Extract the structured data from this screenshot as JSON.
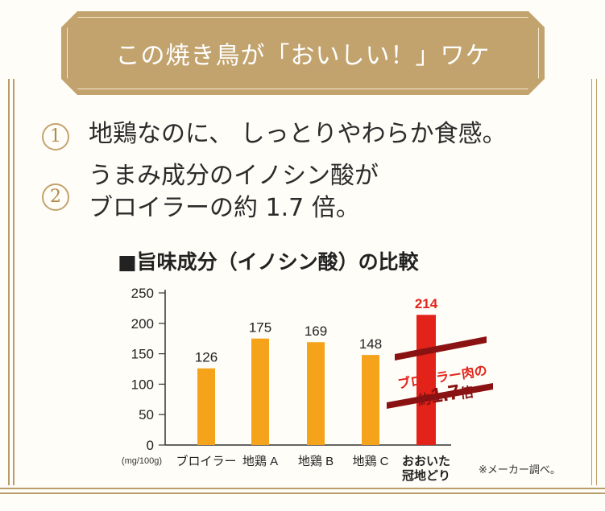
{
  "banner": {
    "title": "この焼き鳥が「おいしい！」ワケ"
  },
  "points": [
    {
      "number": "1",
      "lines": [
        "地鶏なのに、 しっとりやわらか食感。"
      ]
    },
    {
      "number": "2",
      "lines": [
        "うまみ成分のイノシン酸が",
        "ブロイラーの約 1.7 倍。"
      ]
    }
  ],
  "chart_data": {
    "type": "bar",
    "title": "■旨味成分（イノシン酸）の比較",
    "unit_label": "(mg/100g)",
    "categories": [
      "ブロイラー",
      "地鶏 A",
      "地鶏 B",
      "地鶏 C",
      "おおいた冠地どり"
    ],
    "category_lines": [
      [
        "ブロイラー"
      ],
      [
        "地鶏 A"
      ],
      [
        "地鶏 B"
      ],
      [
        "地鶏 C"
      ],
      [
        "おおいた",
        "冠地どり"
      ]
    ],
    "values": [
      126,
      175,
      169,
      148,
      214
    ],
    "data_labels": [
      "126",
      "175",
      "169",
      "148",
      "214"
    ],
    "highlight_index": 4,
    "ylim": [
      0,
      250
    ],
    "yticks": [
      0,
      50,
      100,
      150,
      200,
      250
    ],
    "colors": {
      "bar": "#f5a31a",
      "highlight": "#e32319",
      "axis": "#333333",
      "band": "#8a1212"
    },
    "annotation": {
      "line1": "ブロイラー肉の",
      "line2_prefix": "約",
      "line2_value": "1.7",
      "line2_suffix": "倍"
    }
  },
  "note": "※メーカー調べ。"
}
